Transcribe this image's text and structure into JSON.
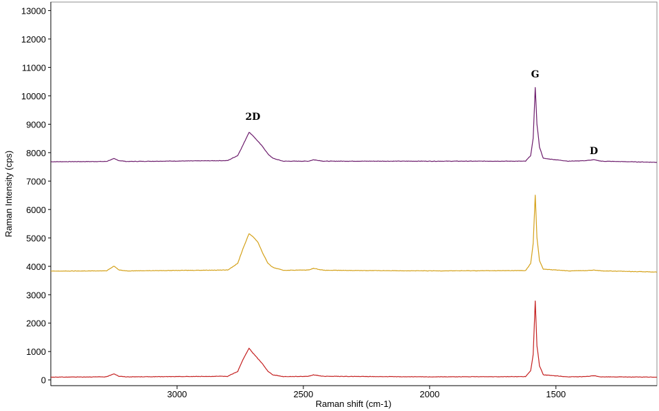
{
  "chart_data": {
    "type": "line",
    "title": "",
    "xlabel": "Raman shift (cm-1)",
    "ylabel": "Raman Intensity (cps)",
    "xlim": [
      3500,
      1100
    ],
    "ylim": [
      -200,
      13300
    ],
    "x_reversed": true,
    "x_ticks": [
      3000,
      2500,
      2000,
      1500
    ],
    "y_ticks": [
      0,
      1000,
      2000,
      3000,
      4000,
      5000,
      6000,
      7000,
      8000,
      9000,
      10000,
      11000,
      12000,
      13000
    ],
    "y_tick_labels": [
      "0",
      "1000",
      "2000",
      "3000",
      "4000",
      "5000",
      "6000",
      "7000",
      "8000",
      "9000",
      "10000",
      "11000",
      "12000",
      "13000"
    ],
    "grid": false,
    "legend": "none",
    "annotations": [
      {
        "text": "2D",
        "x": 2700,
        "y": 9150
      },
      {
        "text": "G",
        "x": 1582,
        "y": 10650
      },
      {
        "text": "D",
        "x": 1350,
        "y": 7950
      }
    ],
    "series": [
      {
        "color": "#6b1a6b",
        "baseline": 7680,
        "x": [
          3500,
          3280,
          3250,
          3230,
          3200,
          2800,
          2760,
          2740,
          2715,
          2700,
          2680,
          2660,
          2640,
          2620,
          2580,
          2480,
          2460,
          2420,
          2000,
          1620,
          1600,
          1590,
          1582,
          1575,
          1565,
          1550,
          1450,
          1380,
          1350,
          1320,
          1100
        ],
        "y": [
          7680,
          7690,
          7790,
          7720,
          7690,
          7720,
          7900,
          8250,
          8720,
          8600,
          8400,
          8200,
          7950,
          7800,
          7700,
          7700,
          7750,
          7700,
          7700,
          7700,
          7900,
          8500,
          10300,
          9000,
          8200,
          7800,
          7700,
          7720,
          7750,
          7700,
          7660
        ]
      },
      {
        "color": "#d4a017",
        "baseline": 3830,
        "x": [
          3500,
          3280,
          3250,
          3230,
          3200,
          2800,
          2760,
          2740,
          2715,
          2700,
          2680,
          2660,
          2640,
          2620,
          2580,
          2480,
          2460,
          2420,
          2000,
          1620,
          1600,
          1590,
          1582,
          1575,
          1565,
          1550,
          1450,
          1380,
          1350,
          1320,
          1100
        ],
        "y": [
          3830,
          3840,
          4010,
          3870,
          3840,
          3870,
          4100,
          4600,
          5150,
          5050,
          4850,
          4450,
          4100,
          3960,
          3860,
          3870,
          3930,
          3860,
          3840,
          3850,
          4100,
          4800,
          6500,
          5000,
          4200,
          3900,
          3840,
          3850,
          3870,
          3840,
          3800
        ]
      },
      {
        "color": "#c41e1e",
        "baseline": 100,
        "x": [
          3500,
          3280,
          3250,
          3230,
          3200,
          2800,
          2760,
          2740,
          2715,
          2700,
          2680,
          2660,
          2640,
          2620,
          2580,
          2480,
          2460,
          2420,
          2000,
          1620,
          1600,
          1590,
          1582,
          1575,
          1565,
          1550,
          1450,
          1380,
          1350,
          1320,
          1100
        ],
        "y": [
          100,
          110,
          220,
          130,
          110,
          130,
          300,
          700,
          1120,
          950,
          750,
          550,
          300,
          180,
          120,
          130,
          180,
          130,
          110,
          120,
          320,
          900,
          2780,
          1200,
          500,
          180,
          110,
          120,
          150,
          110,
          100
        ]
      }
    ]
  }
}
